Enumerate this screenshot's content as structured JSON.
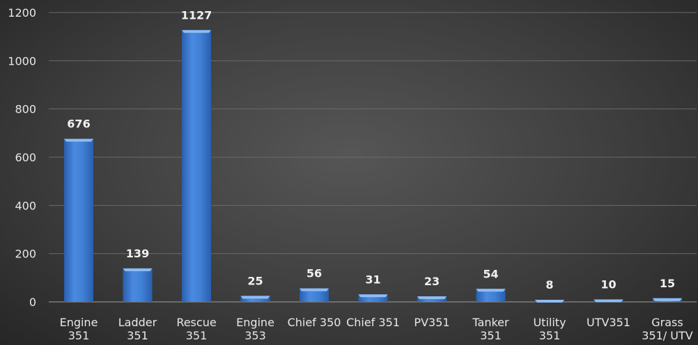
{
  "chart_data": {
    "type": "bar",
    "categories": [
      [
        "Engine",
        "351"
      ],
      [
        "Ladder",
        "351"
      ],
      [
        "Rescue",
        "351"
      ],
      [
        "Engine",
        "353"
      ],
      [
        "Chief 350"
      ],
      [
        "Chief 351"
      ],
      [
        "PV351"
      ],
      [
        "Tanker",
        "351"
      ],
      [
        "Utility",
        "351"
      ],
      [
        "UTV351"
      ],
      [
        "Grass",
        "351/ UTV"
      ]
    ],
    "values": [
      676,
      139,
      1127,
      25,
      56,
      31,
      23,
      54,
      8,
      10,
      15
    ],
    "ylim": [
      0,
      1200
    ],
    "yticks": [
      0,
      200,
      400,
      600,
      800,
      1000,
      1200
    ],
    "grid": true,
    "title": "",
    "xlabel": "",
    "ylabel": "",
    "colors": {
      "bar": "#3f7fd4",
      "bar_dark": "#2a5fae",
      "bar_top": "#8fbcf2"
    }
  }
}
